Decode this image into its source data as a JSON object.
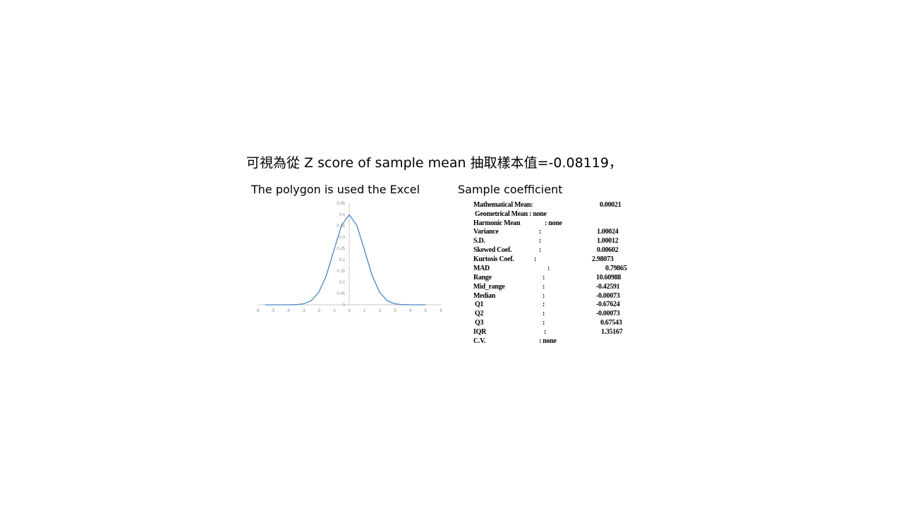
{
  "headline": "可視為從 Z score of sample mean 抽取樣本值=-0.08119，",
  "chart_data": {
    "type": "line",
    "title": "The polygon is used the Excel",
    "xlabel": "",
    "ylabel": "",
    "x_ticks": [
      "-6",
      "-5",
      "-4",
      "-3",
      "-2",
      "-1",
      "0",
      "1",
      "2",
      "3",
      "4",
      "5",
      "6"
    ],
    "y_ticks": [
      "0",
      "0.05",
      "0.1",
      "0.15",
      "0.2",
      "0.25",
      "0.3",
      "0.35",
      "0.4",
      "0.45"
    ],
    "xlim": [
      -6,
      6
    ],
    "ylim": [
      0,
      0.45
    ],
    "series": [
      {
        "x": [
          -5.5,
          -5,
          -4.5,
          -4,
          -3.5,
          -3,
          -2.5,
          -2,
          -1.5,
          -1,
          -0.5,
          0,
          0.5,
          1,
          1.5,
          2,
          2.5,
          3,
          3.5,
          4,
          4.5,
          5
        ],
        "values": [
          0.0,
          0.0,
          0.0,
          0.0001,
          0.0009,
          0.0044,
          0.0175,
          0.054,
          0.1295,
          0.242,
          0.352,
          0.399,
          0.352,
          0.242,
          0.1295,
          0.054,
          0.0175,
          0.0044,
          0.0009,
          0.0001,
          0.0,
          0.0
        ],
        "color": "#4a86c5"
      }
    ],
    "grid": false
  },
  "stats": {
    "title": "Sample coefficient",
    "rows": [
      {
        "label": "Mathematical Mean:",
        "value": "0.00021"
      },
      {
        "label": "Geometrical Mean : none",
        "value": ""
      },
      {
        "label": "Harmonic Mean",
        "sep": ": none",
        "value": ""
      },
      {
        "label": "Variance",
        "sep": ":",
        "value": "1.00024"
      },
      {
        "label": "S.D.",
        "sep": ":",
        "value": "1.00012"
      },
      {
        "label": "Skewed Coef.",
        "sep": ":",
        "value": "0.00602"
      },
      {
        "label": "Kurtosis Coef.",
        "sep": ":",
        "value": "2.98073"
      },
      {
        "label": "MAD",
        "sep": ":",
        "value": "0.79865"
      },
      {
        "label": "Range",
        "sep": ":",
        "value": "10.60988"
      },
      {
        "label": "Mid_range",
        "sep": ":",
        "value": "-0.42591"
      },
      {
        "label": "Median",
        "sep": ":",
        "value": "-0.00073"
      },
      {
        "label": "Q1",
        "sep": ":",
        "value": "-0.67624"
      },
      {
        "label": "Q2",
        "sep": ":",
        "value": "-0.00073"
      },
      {
        "label": "Q3",
        "sep": ":",
        "value": "0.67543"
      },
      {
        "label": "IQR",
        "sep": ":",
        "value": "1.35167"
      },
      {
        "label": "C.V.",
        "sep": ": none",
        "value": ""
      }
    ]
  }
}
